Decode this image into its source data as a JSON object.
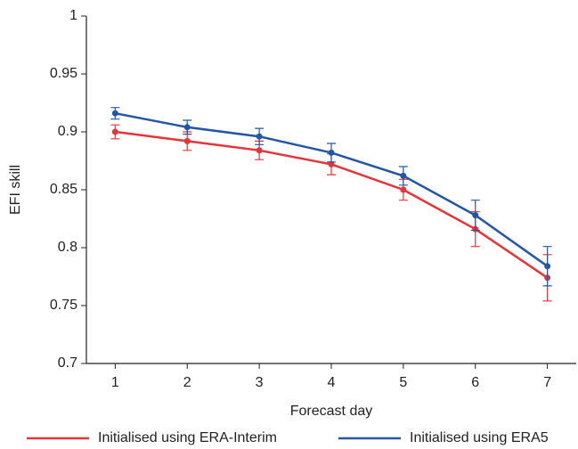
{
  "chart_data": {
    "type": "line",
    "xlabel": "Forecast day",
    "ylabel": "EFI skill",
    "x": [
      1,
      2,
      3,
      4,
      5,
      6,
      7
    ],
    "xlim": [
      0.6,
      7.4
    ],
    "xticks": [
      1,
      2,
      3,
      4,
      5,
      6,
      7
    ],
    "ylim": [
      0.7,
      1
    ],
    "yticks": [
      0.7,
      0.75,
      0.8,
      0.85,
      0.9,
      0.95,
      1
    ],
    "legend": "bottom",
    "series": [
      {
        "name": "Initialised using ERA-Interim",
        "color": "#e8333a",
        "values": [
          0.9,
          0.892,
          0.884,
          0.872,
          0.85,
          0.816,
          0.774
        ],
        "errors": [
          0.006,
          0.008,
          0.008,
          0.009,
          0.009,
          0.015,
          0.02
        ]
      },
      {
        "name": "Initialised using ERA5",
        "color": "#2456a6",
        "values": [
          0.916,
          0.904,
          0.896,
          0.882,
          0.862,
          0.828,
          0.784
        ],
        "errors": [
          0.005,
          0.006,
          0.007,
          0.008,
          0.008,
          0.013,
          0.017
        ]
      }
    ]
  }
}
